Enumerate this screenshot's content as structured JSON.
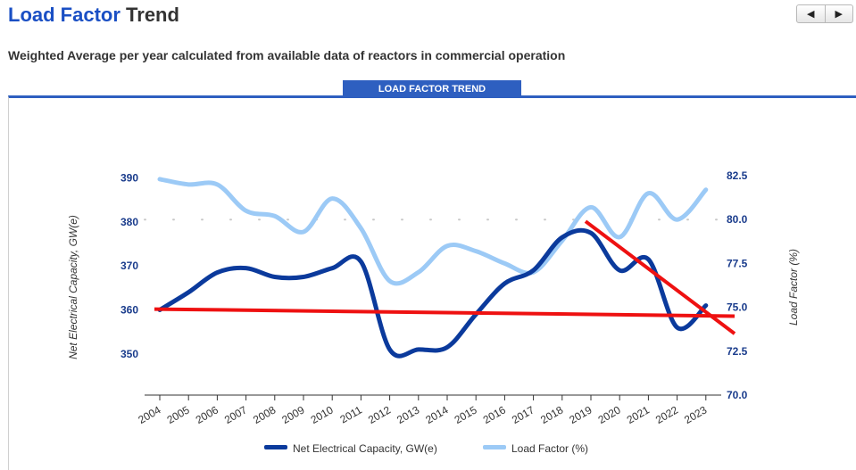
{
  "header": {
    "title_part1": "Load Factor",
    "title_part2": "Trend",
    "subtitle": "Weighted Average per year calculated from available data of reactors in commercial operation",
    "nav_prev_icon": "triangle-left-icon",
    "nav_next_icon": "triangle-right-icon"
  },
  "tab": {
    "label": "LOAD FACTOR TREND"
  },
  "chart_data": {
    "type": "line",
    "categories": [
      "2004",
      "2005",
      "2006",
      "2007",
      "2008",
      "2009",
      "2010",
      "2011",
      "2012",
      "2013",
      "2014",
      "2015",
      "2016",
      "2017",
      "2018",
      "2019",
      "2020",
      "2021",
      "2022",
      "2023"
    ],
    "series": [
      {
        "name": "Net Electrical Capacity, GW(e)",
        "axis": "left",
        "color": "#0b3a9c",
        "values": [
          360,
          364,
          368.5,
          369.5,
          367.5,
          367.5,
          369.5,
          371,
          351,
          351,
          351.5,
          359,
          366,
          369,
          376.5,
          377.5,
          369,
          371.5,
          356,
          361
        ]
      },
      {
        "name": "Load Factor (%)",
        "axis": "right",
        "color": "#9ccaf6",
        "values": [
          82.3,
          82.0,
          82.0,
          80.5,
          80.2,
          79.3,
          81.2,
          79.5,
          76.5,
          77.0,
          78.5,
          78.2,
          77.5,
          77.0,
          78.8,
          80.7,
          79.0,
          81.5,
          80.0,
          81.7
        ]
      }
    ],
    "y_left": {
      "label": "Net Electrical Capacity, GW(e)",
      "ticks": [
        350,
        360,
        370,
        380,
        390
      ]
    },
    "y_right": {
      "label": "Load Factor (%)",
      "ticks": [
        "70.0",
        "72.5",
        "75.0",
        "77.5",
        "80.0",
        "82.5"
      ],
      "range": [
        70.0,
        82.5
      ]
    },
    "annotations": [
      {
        "type": "trend-line",
        "color": "#ee1111",
        "axis": "right",
        "from": {
          "x": "2004",
          "y": 74.9
        },
        "to": {
          "x": "2024",
          "y": 74.5
        }
      },
      {
        "type": "trend-line",
        "color": "#ee1111",
        "axis": "right",
        "from": {
          "x": "2019",
          "y": 79.9
        },
        "to": {
          "x": "2024",
          "y": 73.5
        }
      }
    ],
    "gridlines": "dotted at 80.0 only",
    "legend_position": "bottom-center"
  }
}
